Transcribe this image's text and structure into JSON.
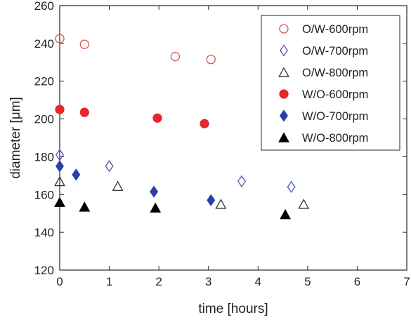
{
  "chart_data": {
    "type": "scatter",
    "xlabel": "time [hours]",
    "ylabel": "diameter [μm]",
    "xlim": [
      0,
      7
    ],
    "ylim": [
      120,
      260
    ],
    "xticks": [
      "0",
      "1",
      "2",
      "3",
      "4",
      "5",
      "6",
      "7"
    ],
    "yticks": [
      "120",
      "140",
      "160",
      "180",
      "200",
      "220",
      "240",
      "260"
    ],
    "grid": false,
    "legend_position": "top-right",
    "series": [
      {
        "name": "O/W-600rpm",
        "marker": "circle",
        "filled": false,
        "color": "#d9534f",
        "x": [
          0,
          0.5,
          2.33,
          3.05
        ],
        "y": [
          242.5,
          239.5,
          233,
          231.5
        ]
      },
      {
        "name": "O/W-700rpm",
        "marker": "diamond",
        "filled": false,
        "color": "#4a56b8",
        "x": [
          0,
          1.0,
          3.67,
          4.67
        ],
        "y": [
          181,
          175,
          167,
          164
        ]
      },
      {
        "name": "O/W-800rpm",
        "marker": "triangle",
        "filled": false,
        "color": "#333333",
        "x": [
          0,
          1.17,
          3.25,
          4.92
        ],
        "y": [
          167,
          164.5,
          155,
          155
        ]
      },
      {
        "name": "W/O-600rpm",
        "marker": "circle",
        "filled": true,
        "color": "#e8262b",
        "x": [
          0,
          0.5,
          1.97,
          2.92
        ],
        "y": [
          205,
          203.5,
          200.5,
          197.5
        ]
      },
      {
        "name": "W/O-700rpm",
        "marker": "diamond",
        "filled": true,
        "color": "#2840a8",
        "x": [
          0,
          0.33,
          1.9,
          3.05
        ],
        "y": [
          175,
          170.5,
          161.5,
          157
        ]
      },
      {
        "name": "W/O-800rpm",
        "marker": "triangle",
        "filled": true,
        "color": "#000000",
        "x": [
          0,
          0.5,
          1.93,
          4.55
        ],
        "y": [
          156,
          153.5,
          153,
          149.5
        ]
      }
    ]
  }
}
